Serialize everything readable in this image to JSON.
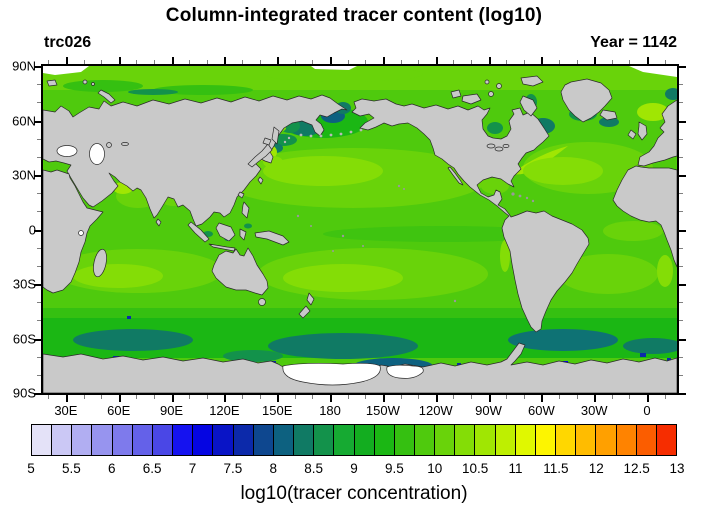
{
  "title": "Column-integrated tracer content (log10)",
  "left_label": "trc026",
  "right_label": "Year = 1142",
  "colorbar": {
    "title": "log10(tracer concentration)",
    "tick_labels": [
      "5",
      "5.5",
      "6",
      "6.5",
      "7",
      "7.5",
      "8",
      "8.5",
      "9",
      "9.5",
      "10",
      "10.5",
      "11",
      "11.5",
      "12",
      "12.5",
      "13"
    ],
    "min": 5,
    "max": 13,
    "step": 0.25,
    "colors": [
      "#e4e2f8",
      "#cbc8f5",
      "#b1aef2",
      "#9794ef",
      "#7e7aec",
      "#6461e9",
      "#4a47e6",
      "#1512f0",
      "#0505e2",
      "#0914c6",
      "#0c29aa",
      "#0e478f",
      "#0d6180",
      "#107a64",
      "#13924b",
      "#16aa32",
      "#13ad20",
      "#1bb714",
      "#35c011",
      "#4fca0d",
      "#69d30a",
      "#84dd06",
      "#a0e603",
      "#beef01",
      "#e0f800",
      "#fdf500",
      "#ffd700",
      "#ffbc00",
      "#ffa000",
      "#ff8300",
      "#fb5d00",
      "#f62d00"
    ]
  },
  "map": {
    "lat_labels": [
      {
        "label": "90N",
        "lat": 90
      },
      {
        "label": "60N",
        "lat": 60
      },
      {
        "label": "30N",
        "lat": 30
      },
      {
        "label": "0",
        "lat": 0
      },
      {
        "label": "30S",
        "lat": -30
      },
      {
        "label": "60S",
        "lat": -60
      },
      {
        "label": "90S",
        "lat": -90
      }
    ],
    "lon_labels": [
      {
        "label": "30E",
        "lon": 30
      },
      {
        "label": "60E",
        "lon": 60
      },
      {
        "label": "90E",
        "lon": 90
      },
      {
        "label": "120E",
        "lon": 120
      },
      {
        "label": "150E",
        "lon": 150
      },
      {
        "label": "180",
        "lon": 180
      },
      {
        "label": "150W",
        "lon": 210
      },
      {
        "label": "120W",
        "lon": 240
      },
      {
        "label": "90W",
        "lon": 270
      },
      {
        "label": "60W",
        "lon": 300
      },
      {
        "label": "30W",
        "lon": 330
      },
      {
        "label": "0",
        "lon": 360
      }
    ],
    "lon_start_deg_e": 17,
    "major_tick_deg": 30,
    "minor_tick_deg": 10,
    "land_color": "#c9c9c9",
    "coast_color": "#2b2b2b",
    "ocean_base_color": "#4fca0d",
    "missing_data_color": "#ffffff"
  },
  "chart_data": {
    "type": "heatmap",
    "subtype": "filled-contour world map, cylindrical equidistant, Pacific-centered (longitude 17E to 377E)",
    "title": "Column-integrated tracer content (log10)",
    "tracer_id": "trc026",
    "year": 1142,
    "colorbar_label": "log10(tracer concentration)",
    "levels_min": 5,
    "levels_max": 13,
    "levels_step": 0.25,
    "lat_ticks": [
      "90N",
      "60N",
      "30N",
      "0",
      "30S",
      "60S",
      "90S"
    ],
    "lon_ticks": [
      "30E",
      "60E",
      "90E",
      "120E",
      "150E",
      "180",
      "150W",
      "120W",
      "90W",
      "60W",
      "30W",
      "0"
    ],
    "palette": [
      "#e4e2f8",
      "#cbc8f5",
      "#b1aef2",
      "#9794ef",
      "#7e7aec",
      "#6461e9",
      "#4a47e6",
      "#1512f0",
      "#0505e2",
      "#0914c6",
      "#0c29aa",
      "#0e478f",
      "#0d6180",
      "#107a64",
      "#13924b",
      "#16aa32",
      "#13ad20",
      "#1bb714",
      "#35c011",
      "#4fca0d",
      "#69d30a",
      "#84dd06",
      "#a0e603",
      "#beef01",
      "#e0f800",
      "#fdf500",
      "#ffd700",
      "#ffbc00",
      "#ffa000",
      "#ff8300",
      "#fb5d00",
      "#f62d00"
    ],
    "field_values_by_region": [
      {
        "region": "most open ocean (tropics and subtropics)",
        "log10_value_range": [
          10.0,
          10.75
        ]
      },
      {
        "region": "subtropical gyre cores",
        "log10_value": 10.5
      },
      {
        "region": "Sea of Japan / Kuroshio region",
        "log10_value_range": [
          10.75,
          11.0
        ]
      },
      {
        "region": "Norwegian Sea / Gulf Stream",
        "log10_value_range": [
          10.5,
          11.0
        ]
      },
      {
        "region": "Arctic Ocean",
        "log10_value_range": [
          9.75,
          10.5
        ]
      },
      {
        "region": "Southern Ocean 50S-65S band",
        "log10_value_range": [
          8.75,
          9.75
        ]
      },
      {
        "region": "Bering Sea / NW Pacific subpolar patches",
        "log10_value_range": [
          8.0,
          9.5
        ]
      },
      {
        "region": "Labrador Sea / Nordic Seas patches",
        "log10_value_range": [
          8.0,
          9.5
        ]
      },
      {
        "region": "Antarctic coastal spots",
        "log10_value_range": [
          7.0,
          8.0
        ]
      },
      {
        "region": "land, Caspian/Black Sea, Ross Ice Shelf, polar gaps",
        "log10_value": null
      }
    ]
  }
}
